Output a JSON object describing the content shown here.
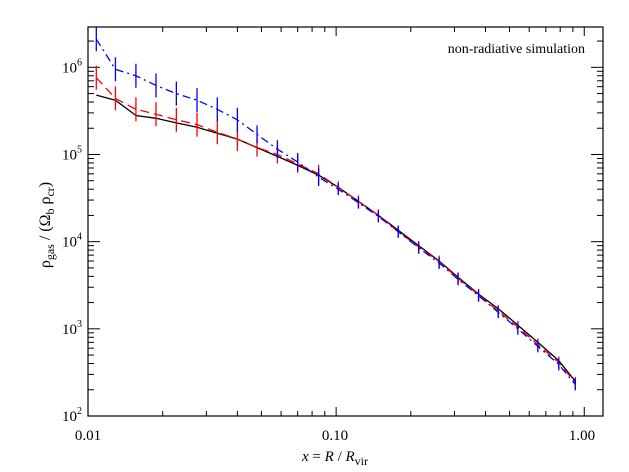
{
  "chart_data": {
    "type": "line",
    "title": "",
    "annotation": "non-radiative simulation",
    "xlabel": "x = R / R_vir",
    "ylabel": "ρ_gas / (Ω_b ρ_cr)",
    "xscale": "log",
    "yscale": "log",
    "xlim": [
      0.01,
      1.19
    ],
    "ylim": [
      100,
      2900000
    ],
    "x_ticks": [
      "0.01",
      "0.10",
      "1.00"
    ],
    "y_ticks": [
      "10^2",
      "10^3",
      "10^4",
      "10^5",
      "10^6"
    ],
    "grid": false,
    "legend": null,
    "x": [
      0.0108,
      0.0129,
      0.0156,
      0.0188,
      0.0227,
      0.0275,
      0.0332,
      0.04,
      0.048,
      0.058,
      0.07,
      0.085,
      0.102,
      0.123,
      0.148,
      0.178,
      0.215,
      0.26,
      0.31,
      0.375,
      0.45,
      0.54,
      0.65,
      0.79,
      0.92
    ],
    "series": [
      {
        "name": "black solid",
        "color": "#000000",
        "style": "solid",
        "values": [
          480000,
          420000,
          280000,
          260000,
          230000,
          205000,
          175000,
          150000,
          120000,
          95000,
          75000,
          58000,
          42000,
          29000,
          20000,
          13500,
          9000,
          6000,
          3900,
          2500,
          1700,
          1100,
          700,
          430,
          250
        ]
      },
      {
        "name": "red dashed",
        "color": "#ff0000",
        "style": "dashed",
        "values": [
          760000,
          440000,
          330000,
          290000,
          250000,
          220000,
          180000,
          150000,
          120000,
          100000,
          78000,
          60000,
          42000,
          29000,
          20000,
          13000,
          8700,
          5900,
          3800,
          2450,
          1600,
          1050,
          660,
          410,
          240
        ]
      },
      {
        "name": "blue dash-dot",
        "color": "#0000ff",
        "style": "dashdot",
        "values": [
          2100000,
          950000,
          800000,
          620000,
          500000,
          420000,
          330000,
          250000,
          170000,
          115000,
          82000,
          55000,
          40000,
          28000,
          19500,
          13000,
          8500,
          5700,
          3700,
          2400,
          1550,
          1000,
          630,
          390,
          230
        ]
      }
    ]
  },
  "labels": {
    "annotation": "non-radiative simulation",
    "x_tick_0": "0.01",
    "x_tick_1": "0.10",
    "x_tick_2": "1.00",
    "y_tick_2": "2",
    "y_tick_3": "3",
    "y_tick_4": "4",
    "y_tick_5": "5",
    "y_tick_6": "6",
    "y_base": "10"
  }
}
